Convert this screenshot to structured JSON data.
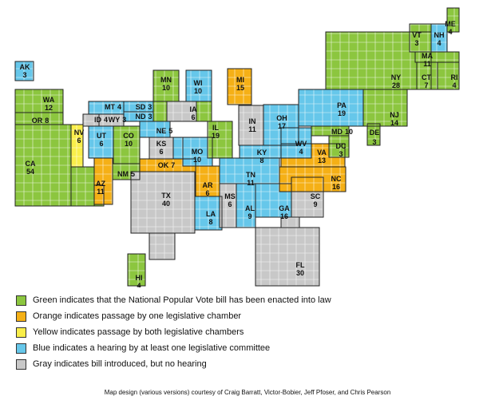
{
  "colors": {
    "green": "#8cc63f",
    "orange": "#f5b016",
    "yellow": "#f9ee4a",
    "blue": "#66c7ea",
    "gray": "#c8c8c8"
  },
  "states": [
    {
      "abbr": "AK",
      "votes": "3",
      "status": "blue"
    },
    {
      "abbr": "WA",
      "votes": "12",
      "status": "green"
    },
    {
      "abbr": "OR",
      "votes": "8",
      "status": "green"
    },
    {
      "abbr": "CA",
      "votes": "54",
      "status": "green"
    },
    {
      "abbr": "NV",
      "votes": "6",
      "status": "yellow"
    },
    {
      "abbr": "ID",
      "votes": "4",
      "status": "gray"
    },
    {
      "abbr": "MT",
      "votes": "4",
      "status": "blue"
    },
    {
      "abbr": "WY",
      "votes": "3",
      "status": "gray"
    },
    {
      "abbr": "UT",
      "votes": "6",
      "status": "blue"
    },
    {
      "abbr": "AZ",
      "votes": "11",
      "status": "orange"
    },
    {
      "abbr": "CO",
      "votes": "10",
      "status": "green"
    },
    {
      "abbr": "NM",
      "votes": "5",
      "status": "green"
    },
    {
      "abbr": "ND",
      "votes": "3",
      "status": "blue"
    },
    {
      "abbr": "SD",
      "votes": "3",
      "status": "blue"
    },
    {
      "abbr": "NE",
      "votes": "5",
      "status": "blue"
    },
    {
      "abbr": "KS",
      "votes": "6",
      "status": "gray"
    },
    {
      "abbr": "OK",
      "votes": "7",
      "status": "orange"
    },
    {
      "abbr": "TX",
      "votes": "40",
      "status": "gray"
    },
    {
      "abbr": "MN",
      "votes": "10",
      "status": "green"
    },
    {
      "abbr": "IA",
      "votes": "6",
      "status": "gray"
    },
    {
      "abbr": "MO",
      "votes": "10",
      "status": "blue"
    },
    {
      "abbr": "AR",
      "votes": "6",
      "status": "orange"
    },
    {
      "abbr": "LA",
      "votes": "8",
      "status": "blue"
    },
    {
      "abbr": "WI",
      "votes": "10",
      "status": "blue"
    },
    {
      "abbr": "IL",
      "votes": "19",
      "status": "green"
    },
    {
      "abbr": "MS",
      "votes": "6",
      "status": "gray"
    },
    {
      "abbr": "MI",
      "votes": "15",
      "status": "orange"
    },
    {
      "abbr": "IN",
      "votes": "11",
      "status": "gray"
    },
    {
      "abbr": "KY",
      "votes": "8",
      "status": "blue"
    },
    {
      "abbr": "TN",
      "votes": "11",
      "status": "blue"
    },
    {
      "abbr": "AL",
      "votes": "9",
      "status": "blue"
    },
    {
      "abbr": "OH",
      "votes": "17",
      "status": "blue"
    },
    {
      "abbr": "GA",
      "votes": "16",
      "status": "blue"
    },
    {
      "abbr": "FL",
      "votes": "30",
      "status": "gray"
    },
    {
      "abbr": "SC",
      "votes": "9",
      "status": "gray"
    },
    {
      "abbr": "NC",
      "votes": "16",
      "status": "orange"
    },
    {
      "abbr": "VA",
      "votes": "13",
      "status": "orange"
    },
    {
      "abbr": "WV",
      "votes": "4",
      "status": "blue"
    },
    {
      "abbr": "PA",
      "votes": "19",
      "status": "blue"
    },
    {
      "abbr": "MD",
      "votes": "10",
      "status": "green"
    },
    {
      "abbr": "DC",
      "votes": "3",
      "status": "green"
    },
    {
      "abbr": "DE",
      "votes": "3",
      "status": "green"
    },
    {
      "abbr": "NJ",
      "votes": "14",
      "status": "green"
    },
    {
      "abbr": "NY",
      "votes": "28",
      "status": "green"
    },
    {
      "abbr": "CT",
      "votes": "7",
      "status": "green"
    },
    {
      "abbr": "RI",
      "votes": "4",
      "status": "green"
    },
    {
      "abbr": "MA",
      "votes": "11",
      "status": "green"
    },
    {
      "abbr": "VT",
      "votes": "3",
      "status": "green"
    },
    {
      "abbr": "NH",
      "votes": "4",
      "status": "blue"
    },
    {
      "abbr": "ME",
      "votes": "4",
      "status": "green"
    },
    {
      "abbr": "HI",
      "votes": "4",
      "status": "green"
    }
  ],
  "legend": [
    {
      "status": "green",
      "text": "Green indicates that the National Popular Vote bill has been enacted into law"
    },
    {
      "status": "orange",
      "text": "Orange indicates passage by one legislative chamber"
    },
    {
      "status": "yellow",
      "text": "Yellow indicates passage by both legislative chambers"
    },
    {
      "status": "blue",
      "text": "Blue indicates a hearing by at least one legislative committee"
    },
    {
      "status": "gray",
      "text": "Gray indicates bill introduced, but no hearing"
    }
  ],
  "credit": "Map design (various versions) courtesy of Craig Barratt, Victor-Bobier, Jeff Pfoser, and Chris Pearson"
}
